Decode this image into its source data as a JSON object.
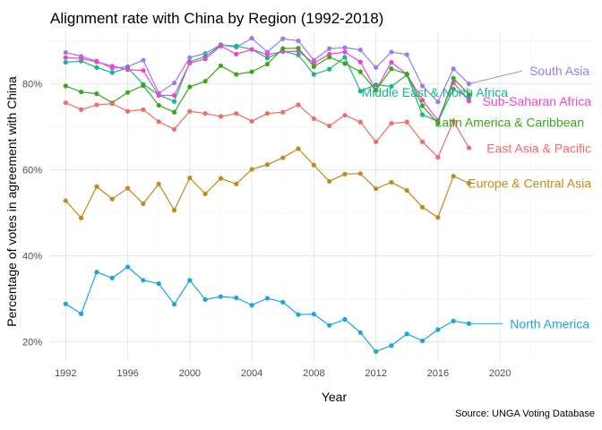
{
  "chart_data": {
    "type": "line",
    "title": "Alignment rate with China by Region (1992-2018)",
    "xlabel": "Year",
    "ylabel": "Percentage of votes in agreement with China",
    "caption": "Source: UNGA Voting Database",
    "xlim": [
      1991,
      2026
    ],
    "ylim": [
      0.155,
      0.92
    ],
    "x_ticks": [
      1992,
      1996,
      2000,
      2004,
      2008,
      2012,
      2016,
      2020
    ],
    "x_tick_labels": [
      "1992",
      "1996",
      "2000",
      "2004",
      "2008",
      "2012",
      "2016",
      "2020"
    ],
    "y_ticks": [
      0.2,
      0.4,
      0.6,
      0.8
    ],
    "y_tick_labels": [
      "20%",
      "40%",
      "60%",
      "80%"
    ],
    "grid": true,
    "legend": "direct labels at line ends",
    "x": [
      1992,
      1993,
      1994,
      1995,
      1996,
      1997,
      1998,
      1999,
      2000,
      2001,
      2002,
      2003,
      2004,
      2005,
      2006,
      2007,
      2008,
      2009,
      2010,
      2011,
      2012,
      2013,
      2014,
      2015,
      2016,
      2017,
      2018
    ],
    "series": [
      {
        "name": "South Asia",
        "color": "#9a7bf5",
        "values": [
          0.873,
          0.864,
          0.853,
          0.836,
          0.84,
          0.855,
          0.778,
          0.802,
          0.861,
          0.871,
          0.891,
          0.885,
          0.906,
          0.874,
          0.905,
          0.9,
          0.855,
          0.882,
          0.884,
          0.879,
          0.838,
          0.874,
          0.868,
          0.795,
          0.758,
          0.835,
          0.8
        ]
      },
      {
        "name": "Middle East & North Africa",
        "color": "#16b88a",
        "values": [
          0.85,
          0.853,
          0.838,
          0.826,
          0.837,
          0.799,
          0.774,
          0.759,
          0.851,
          0.864,
          0.89,
          0.888,
          0.88,
          0.86,
          0.876,
          0.867,
          0.822,
          0.834,
          0.862,
          0.783,
          0.798,
          0.794,
          0.821,
          0.728,
          0.713,
          0.788,
          0.767
        ]
      },
      {
        "name": "Sub-Saharan Africa",
        "color": "#f045c8",
        "values": [
          0.861,
          0.859,
          0.851,
          0.841,
          0.833,
          0.831,
          0.773,
          0.773,
          0.848,
          0.858,
          0.888,
          0.869,
          0.88,
          0.868,
          0.875,
          0.876,
          0.848,
          0.869,
          0.874,
          0.851,
          0.786,
          0.85,
          0.822,
          0.762,
          0.715,
          0.803,
          0.76
        ]
      },
      {
        "name": "Latin America & Caribbean",
        "color": "#3aa71a",
        "values": [
          0.795,
          0.781,
          0.777,
          0.756,
          0.78,
          0.796,
          0.75,
          0.734,
          0.793,
          0.806,
          0.842,
          0.822,
          0.828,
          0.846,
          0.882,
          0.883,
          0.84,
          0.862,
          0.847,
          0.828,
          0.785,
          0.835,
          0.823,
          0.749,
          0.708,
          0.813,
          0.775
        ]
      },
      {
        "name": "East Asia & Pacific",
        "color": "#f26b6b",
        "values": [
          0.756,
          0.74,
          0.751,
          0.754,
          0.736,
          0.74,
          0.712,
          0.694,
          0.736,
          0.731,
          0.724,
          0.731,
          0.713,
          0.731,
          0.734,
          0.751,
          0.719,
          0.702,
          0.727,
          0.711,
          0.665,
          0.708,
          0.711,
          0.665,
          0.629,
          0.713,
          0.651
        ]
      },
      {
        "name": "Europe & Central Asia",
        "color": "#bf8c1a",
        "values": [
          0.528,
          0.488,
          0.561,
          0.532,
          0.557,
          0.521,
          0.567,
          0.506,
          0.581,
          0.544,
          0.58,
          0.567,
          0.601,
          0.612,
          0.628,
          0.649,
          0.611,
          0.573,
          0.59,
          0.591,
          0.556,
          0.571,
          0.552,
          0.513,
          0.489,
          0.585,
          0.569
        ]
      },
      {
        "name": "North America",
        "color": "#1aa5e0",
        "values": [
          0.288,
          0.265,
          0.362,
          0.348,
          0.374,
          0.343,
          0.335,
          0.287,
          0.343,
          0.298,
          0.305,
          0.302,
          0.285,
          0.301,
          0.292,
          0.263,
          0.264,
          0.238,
          0.252,
          0.221,
          0.177,
          0.191,
          0.218,
          0.202,
          0.228,
          0.248,
          0.242
        ]
      }
    ]
  }
}
